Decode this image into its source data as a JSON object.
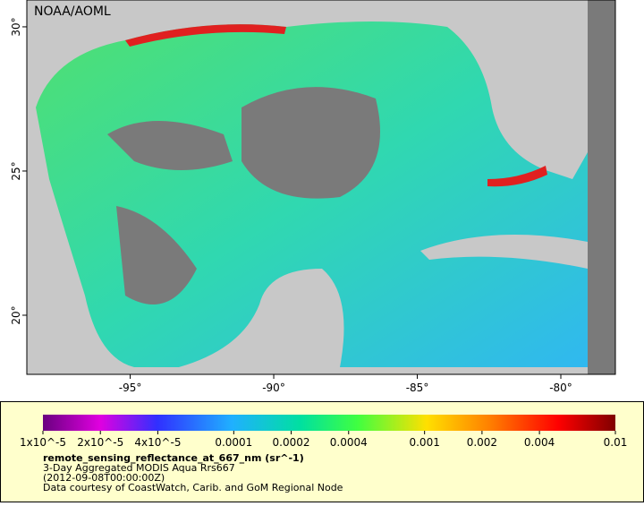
{
  "map": {
    "credit": "NOAA/AOML",
    "lon_range": [
      -98.6,
      -78.1
    ],
    "lat_range": [
      17.95,
      30.93
    ],
    "lon_ticks": [
      {
        "value": -95,
        "label": "-95°"
      },
      {
        "value": -90,
        "label": "-90°"
      },
      {
        "value": -85,
        "label": "-85°"
      },
      {
        "value": -80,
        "label": "-80°"
      }
    ],
    "lat_ticks": [
      {
        "value": 30,
        "label": "30°"
      },
      {
        "value": 25,
        "label": "25°"
      },
      {
        "value": 20,
        "label": "20°"
      }
    ]
  },
  "legend": {
    "colorbar_range": [
      1e-05,
      0.01
    ],
    "colorbar_ticks": [
      {
        "value": 1e-05,
        "label": "1x10^-5"
      },
      {
        "value": 2e-05,
        "label": "2x10^-5"
      },
      {
        "value": 4e-05,
        "label": "4x10^-5"
      },
      0.0001,
      0.0002,
      0.0004,
      0.001,
      0.002,
      0.004,
      0.01
    ],
    "variable": "remote_sensing_reflectance_at_667_nm (sr^-1)",
    "lines": [
      "3-Day Aggregated MODIS Aqua Rrs667",
      "(2012-09-08T00:00:00Z)",
      "Data courtesy of CoastWatch, Carib. and GoM Regional Node"
    ]
  }
}
